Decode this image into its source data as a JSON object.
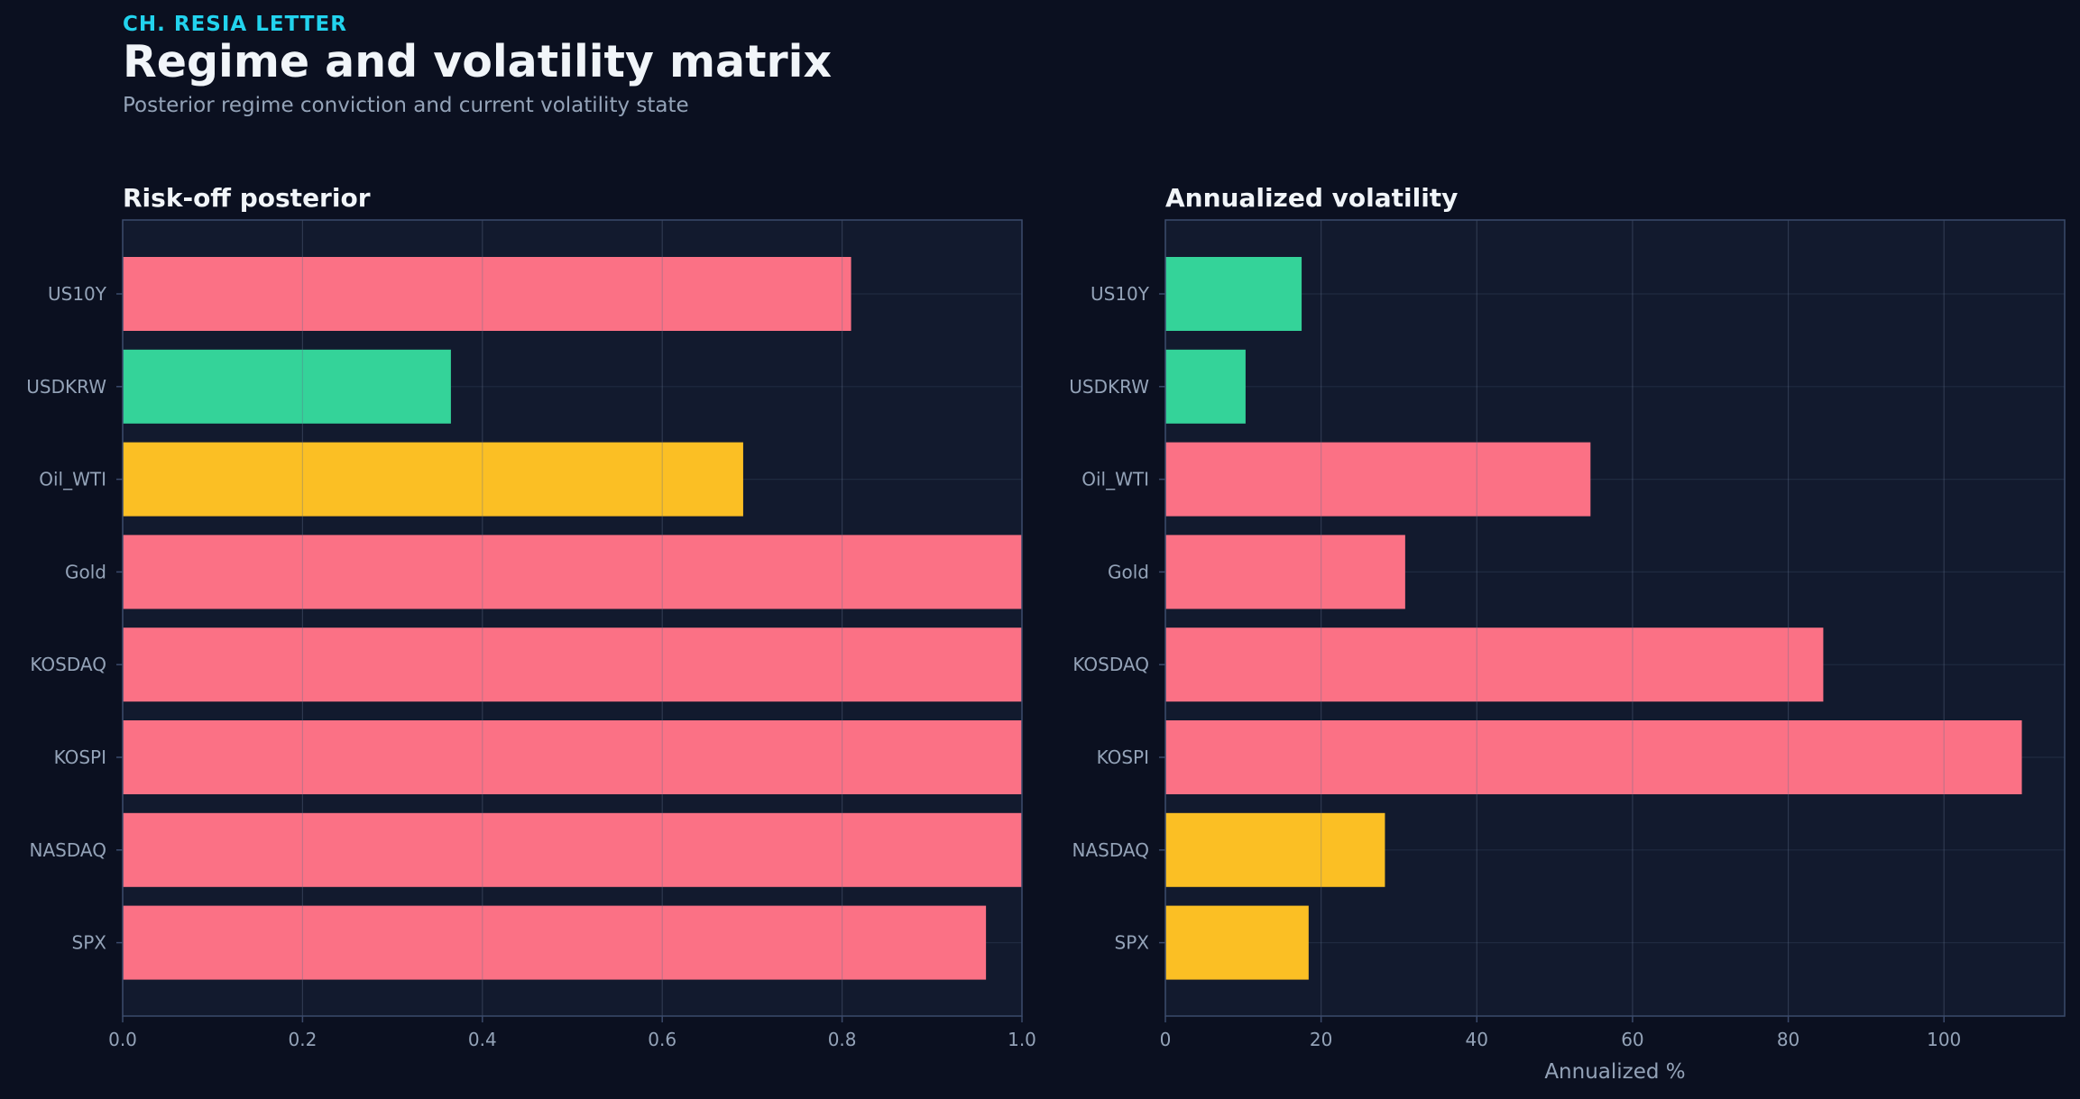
{
  "header": {
    "kicker": "CH. RESIA LETTER",
    "title": "Regime and volatility matrix",
    "subtitle": "Posterior regime conviction and current volatility state"
  },
  "colors": {
    "background": "#0b1020",
    "panel": "#121a2e",
    "accent": "#22d3ee",
    "risk_off": "#fb7185",
    "neutral": "#fbbf24",
    "risk_on": "#34d399"
  },
  "chart_data": [
    {
      "type": "bar",
      "orientation": "horizontal",
      "title": "Risk-off posterior",
      "xlabel": "",
      "ylabel": "",
      "categories": [
        "US10Y",
        "USDKRW",
        "Oil_WTI",
        "Gold",
        "KOSDAQ",
        "KOSPI",
        "NASDAQ",
        "SPX"
      ],
      "values": [
        0.81,
        0.365,
        0.69,
        1.0,
        1.0,
        1.0,
        1.0,
        0.96
      ],
      "bar_colors": [
        "#fb7185",
        "#34d399",
        "#fbbf24",
        "#fb7185",
        "#fb7185",
        "#fb7185",
        "#fb7185",
        "#fb7185"
      ],
      "xlim": [
        0,
        1.0
      ],
      "xticks": [
        0.0,
        0.2,
        0.4,
        0.6,
        0.8,
        1.0
      ],
      "xtick_labels": [
        "0.0",
        "0.2",
        "0.4",
        "0.6",
        "0.8",
        "1.0"
      ],
      "grid": true
    },
    {
      "type": "bar",
      "orientation": "horizontal",
      "title": "Annualized volatility",
      "xlabel": "Annualized %",
      "ylabel": "",
      "categories": [
        "US10Y",
        "USDKRW",
        "Oil_WTI",
        "Gold",
        "KOSDAQ",
        "KOSPI",
        "NASDAQ",
        "SPX"
      ],
      "values": [
        17.5,
        10.3,
        54.6,
        30.8,
        84.5,
        110.0,
        28.2,
        18.4
      ],
      "bar_colors": [
        "#34d399",
        "#34d399",
        "#fb7185",
        "#fb7185",
        "#fb7185",
        "#fb7185",
        "#fbbf24",
        "#fbbf24"
      ],
      "xlim": [
        0,
        115.5
      ],
      "xticks": [
        0,
        20,
        40,
        60,
        80,
        100
      ],
      "xtick_labels": [
        "0",
        "20",
        "40",
        "60",
        "80",
        "100"
      ],
      "grid": true
    }
  ]
}
